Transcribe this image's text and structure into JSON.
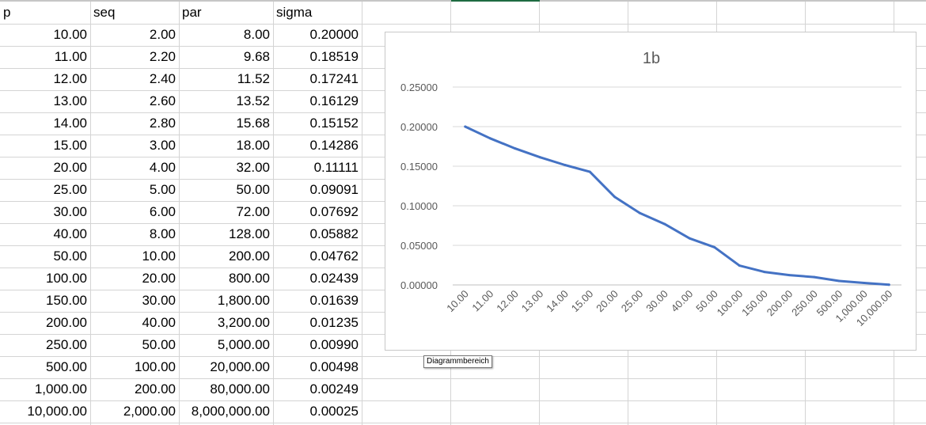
{
  "sheet": {
    "headers": [
      "p",
      "seq",
      "par",
      "sigma"
    ],
    "rows": [
      [
        "10.00",
        "2.00",
        "8.00",
        "0.20000"
      ],
      [
        "11.00",
        "2.20",
        "9.68",
        "0.18519"
      ],
      [
        "12.00",
        "2.40",
        "11.52",
        "0.17241"
      ],
      [
        "13.00",
        "2.60",
        "13.52",
        "0.16129"
      ],
      [
        "14.00",
        "2.80",
        "15.68",
        "0.15152"
      ],
      [
        "15.00",
        "3.00",
        "18.00",
        "0.14286"
      ],
      [
        "20.00",
        "4.00",
        "32.00",
        "0.11111"
      ],
      [
        "25.00",
        "5.00",
        "50.00",
        "0.09091"
      ],
      [
        "30.00",
        "6.00",
        "72.00",
        "0.07692"
      ],
      [
        "40.00",
        "8.00",
        "128.00",
        "0.05882"
      ],
      [
        "50.00",
        "10.00",
        "200.00",
        "0.04762"
      ],
      [
        "100.00",
        "20.00",
        "800.00",
        "0.02439"
      ],
      [
        "150.00",
        "30.00",
        "1,800.00",
        "0.01639"
      ],
      [
        "200.00",
        "40.00",
        "3,200.00",
        "0.01235"
      ],
      [
        "250.00",
        "50.00",
        "5,000.00",
        "0.00990"
      ],
      [
        "500.00",
        "100.00",
        "20,000.00",
        "0.00498"
      ],
      [
        "1,000.00",
        "200.00",
        "80,000.00",
        "0.00249"
      ],
      [
        "10,000.00",
        "2,000.00",
        "8,000,000.00",
        "0.00025"
      ]
    ]
  },
  "chart_data": {
    "type": "line",
    "title": "1b",
    "xlabel": "",
    "ylabel": "",
    "categories": [
      "10.00",
      "11.00",
      "12.00",
      "13.00",
      "14.00",
      "15.00",
      "20.00",
      "25.00",
      "30.00",
      "40.00",
      "50.00",
      "100.00",
      "150.00",
      "200.00",
      "250.00",
      "500.00",
      "1,000.00",
      "10,000.00"
    ],
    "series": [
      {
        "values": [
          0.2,
          0.18519,
          0.17241,
          0.16129,
          0.15152,
          0.14286,
          0.11111,
          0.09091,
          0.07692,
          0.05882,
          0.04762,
          0.02439,
          0.01639,
          0.01235,
          0.0099,
          0.00498,
          0.00249,
          0.00025
        ],
        "color": "#4472c4"
      }
    ],
    "yticks": [
      "0.00000",
      "0.05000",
      "0.10000",
      "0.15000",
      "0.20000",
      "0.25000"
    ],
    "ylim": [
      0,
      0.25
    ],
    "grid": true,
    "legend": "none"
  },
  "tooltip": {
    "text": "Diagrammbereich"
  }
}
